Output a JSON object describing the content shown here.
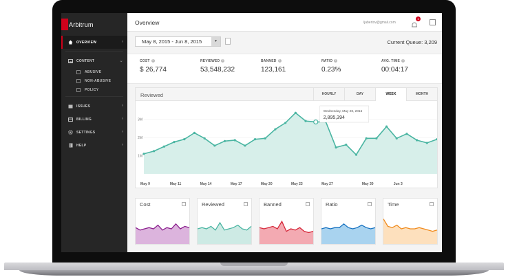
{
  "app": {
    "name_first_letter": "A",
    "name_rest": "rbitrum"
  },
  "sidebar": {
    "items": [
      {
        "label": "OVERVIEW",
        "icon": "home-icon",
        "active": true
      },
      {
        "label": "CONTENT",
        "icon": "image-icon"
      },
      {
        "label": "ISSUES",
        "icon": "issues-icon"
      },
      {
        "label": "BILLING",
        "icon": "credit-card-icon"
      },
      {
        "label": "SETTINGS",
        "icon": "gear-icon"
      },
      {
        "label": "HELP",
        "icon": "book-icon"
      }
    ],
    "subitems": [
      {
        "label": "ABUSIVE"
      },
      {
        "label": "NON-ABUSIVE"
      },
      {
        "label": "POLICY"
      }
    ]
  },
  "header": {
    "title": "Overview",
    "email": "ljabertov@gmail.com",
    "notifications": "1"
  },
  "filters": {
    "date_range": "May 8, 2015 - Jun 8, 2015",
    "queue": "Current Queue: 3,209"
  },
  "stats": [
    {
      "label": "COST",
      "value": "$ 26,774"
    },
    {
      "label": "REVIEWED",
      "value": "53,548,232"
    },
    {
      "label": "BANNED",
      "value": "123,161"
    },
    {
      "label": "RATIO",
      "value": "0.23%"
    },
    {
      "label": "AVG. TIME",
      "value": "00:04:17"
    }
  ],
  "main_chart": {
    "title": "Reviewed",
    "tabs": [
      "HOURLY",
      "DAY",
      "WEEK",
      "MONTH"
    ],
    "active_tab": "WEEK",
    "tooltip": {
      "date": "Wednesday, May 28, 2015",
      "value": "2,895,394"
    }
  },
  "mini_charts": [
    {
      "title": "Cost",
      "color": "#8b1f8e",
      "fill": "#dcb4dd"
    },
    {
      "title": "Reviewed",
      "color": "#4ab5a2",
      "fill": "#cdeae4"
    },
    {
      "title": "Banned",
      "color": "#d6293b",
      "fill": "#f3aab2"
    },
    {
      "title": "Ratio",
      "color": "#1470c0",
      "fill": "#a9d3ef"
    },
    {
      "title": "Time",
      "color": "#f08a1c",
      "fill": "#fde0bd"
    }
  ],
  "chart_data": {
    "type": "area",
    "title": "Reviewed",
    "ylabel": "",
    "yticks": [
      "1M",
      "2M",
      "3M"
    ],
    "ylim": [
      0,
      4000000
    ],
    "xticks": [
      "May 9",
      "May 11",
      "May 14",
      "May 17",
      "May 20",
      "May 23",
      "May 27",
      "May 30",
      "Jun 3"
    ],
    "series": [
      {
        "values": [
          1100000,
          1250000,
          1500000,
          1750000,
          1900000,
          2250000,
          1950000,
          1550000,
          1800000,
          1850000,
          1550000,
          1900000,
          1950000,
          2450000,
          2800000,
          3350000,
          2900000,
          2850000,
          2850000,
          1450000,
          1600000,
          1050000,
          1950000,
          1950000,
          2600000,
          1950000,
          2200000,
          1850000,
          1700000,
          1900000
        ]
      }
    ]
  }
}
